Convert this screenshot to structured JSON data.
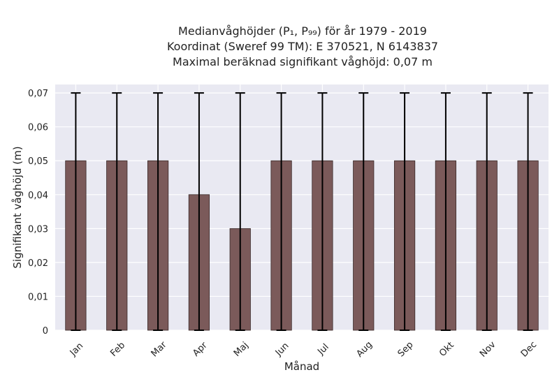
{
  "chart_data": {
    "type": "bar",
    "title_lines": [
      "Medianvåghöjder (P₁, P₉₉) för år 1979 - 2019",
      "Koordinat (Sweref 99 TM): E 370521, N 6143837",
      "Maximal beräknad signifikant våghöjd: 0,07 m"
    ],
    "xlabel": "Månad",
    "ylabel": "Signifikant våghöjd (m)",
    "categories": [
      "Jan",
      "Feb",
      "Mar",
      "Apr",
      "Maj",
      "Jun",
      "Jul",
      "Aug",
      "Sep",
      "Okt",
      "Nov",
      "Dec"
    ],
    "values": [
      0.05,
      0.05,
      0.05,
      0.04,
      0.03,
      0.05,
      0.05,
      0.05,
      0.05,
      0.05,
      0.05,
      0.05
    ],
    "error_low": [
      0,
      0,
      0,
      0,
      0,
      0,
      0,
      0,
      0,
      0,
      0,
      0
    ],
    "error_high": [
      0.07,
      0.07,
      0.07,
      0.07,
      0.07,
      0.07,
      0.07,
      0.07,
      0.07,
      0.07,
      0.07,
      0.07
    ],
    "ylim": [
      0,
      0.0725
    ],
    "yticks": [
      0,
      0.01,
      0.02,
      0.03,
      0.04,
      0.05,
      0.06,
      0.07
    ],
    "ytick_labels": [
      "0",
      "0,01",
      "0,02",
      "0,03",
      "0,04",
      "0,05",
      "0,06",
      "0,07"
    ],
    "grid": true,
    "colors": {
      "bar": "#7b5a5a",
      "bar_edge": "#3a2a2a",
      "error": "#000000",
      "plot_bg": "#e9e9f2",
      "grid": "#ffffff"
    }
  }
}
